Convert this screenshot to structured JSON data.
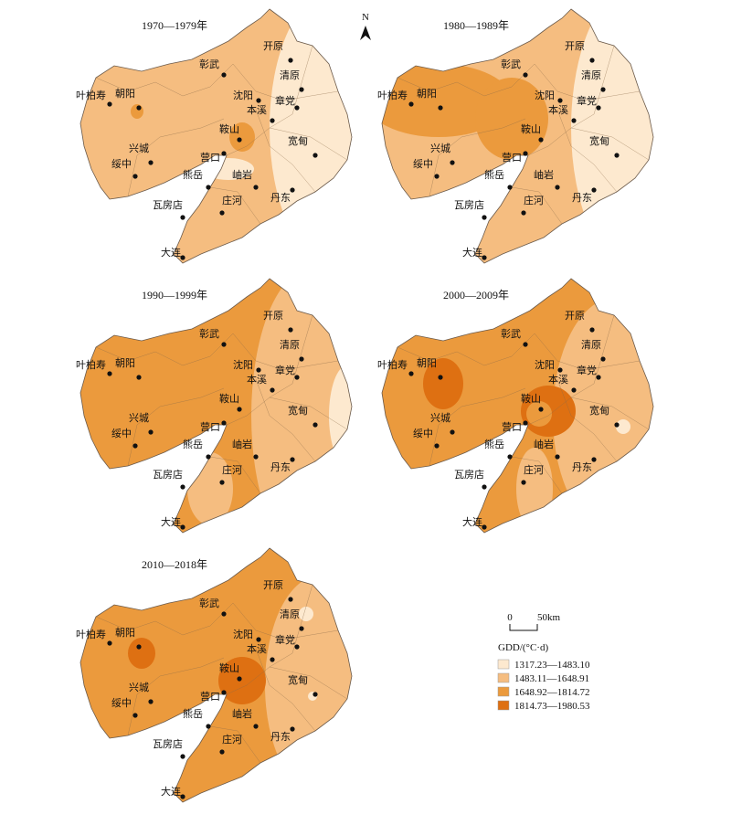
{
  "panels": [
    {
      "title": "1970—1979年"
    },
    {
      "title": "1980—1989年"
    },
    {
      "title": "1990—1999年"
    },
    {
      "title": "2000—2009年"
    },
    {
      "title": "2010—2018年"
    }
  ],
  "cities": [
    "叶柏寿",
    "朝阳",
    "彰武",
    "开原",
    "清原",
    "沈阳",
    "章党",
    "本溪",
    "鞍山",
    "营口",
    "兴城",
    "绥中",
    "熊岳",
    "岫岩",
    "宽甸",
    "丹东",
    "瓦房店",
    "庄河",
    "大连"
  ],
  "north": "N",
  "scale": {
    "zero": "0",
    "length": "50km"
  },
  "legend": {
    "title": "GDD/(°C·d)",
    "items": [
      {
        "label": "1317.23—1483.10",
        "color": "#fde9cf"
      },
      {
        "label": "1483.11—1648.91",
        "color": "#f5bd80"
      },
      {
        "label": "1648.92—1814.72",
        "color": "#eb9a3d"
      },
      {
        "label": "1814.73—1980.53",
        "color": "#de7012"
      }
    ]
  }
}
